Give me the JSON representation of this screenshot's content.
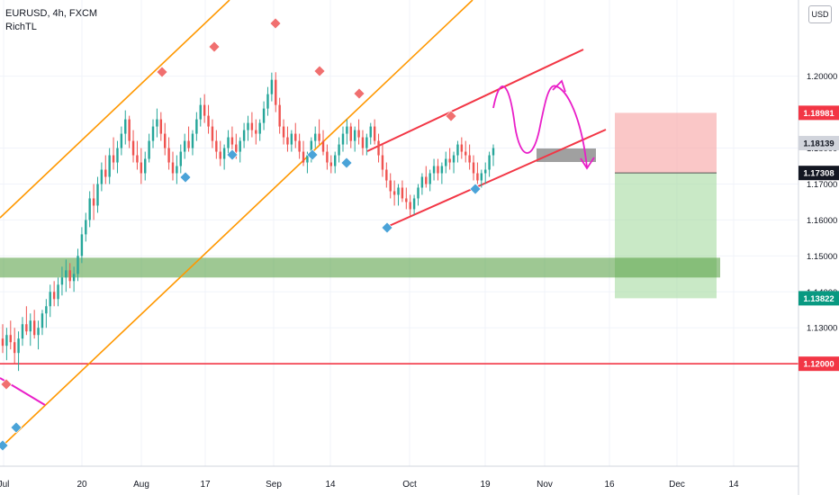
{
  "header": {
    "symbol_line": "EURUSD, 4h, FXCM",
    "indicator": "RichTL"
  },
  "currency_button": "USD",
  "chart_data": {
    "type": "candlestick",
    "symbol": "EURUSD",
    "timeframe": "4h",
    "source": "FXCM",
    "ylim": [
      1.0915,
      1.2212
    ],
    "y_ticks": [
      "1.20000",
      "1.18000",
      "1.17000",
      "1.16000",
      "1.15000",
      "1.14000",
      "1.13000",
      "1.12000"
    ],
    "x_ticks": [
      "Jul",
      "20",
      "Aug",
      "17",
      "Sep",
      "14",
      "Oct",
      "19",
      "Nov",
      "16",
      "Dec",
      "14"
    ],
    "price_labels": [
      {
        "text": "1.18981",
        "value": 1.18981,
        "color": "#f23645"
      },
      {
        "text": "1.18139",
        "value": 1.18139,
        "color": "#d1d4dc"
      },
      {
        "text": "1.17308",
        "value": 1.17308,
        "color": "#131722"
      },
      {
        "text": "1.13822",
        "value": 1.13822,
        "color": "#089981"
      },
      {
        "text": "1.12000",
        "value": 1.12,
        "color": "#f23645"
      }
    ],
    "candles": [
      [
        1.127,
        1.131,
        1.123,
        1.125
      ],
      [
        1.125,
        1.13,
        1.121,
        1.128
      ],
      [
        1.128,
        1.132,
        1.124,
        1.126
      ],
      [
        1.126,
        1.13,
        1.12,
        1.123
      ],
      [
        1.123,
        1.129,
        1.118,
        1.127
      ],
      [
        1.127,
        1.133,
        1.125,
        1.131
      ],
      [
        1.131,
        1.136,
        1.128,
        1.129
      ],
      [
        1.129,
        1.134,
        1.125,
        1.132
      ],
      [
        1.132,
        1.135,
        1.127,
        1.128
      ],
      [
        1.128,
        1.132,
        1.124,
        1.13
      ],
      [
        1.13,
        1.135,
        1.128,
        1.134
      ],
      [
        1.134,
        1.138,
        1.13,
        1.136
      ],
      [
        1.136,
        1.142,
        1.133,
        1.14
      ],
      [
        1.14,
        1.143,
        1.136,
        1.138
      ],
      [
        1.138,
        1.144,
        1.136,
        1.142
      ],
      [
        1.142,
        1.147,
        1.139,
        1.144
      ],
      [
        1.144,
        1.149,
        1.14,
        1.146
      ],
      [
        1.146,
        1.148,
        1.141,
        1.143
      ],
      [
        1.143,
        1.147,
        1.14,
        1.145
      ],
      [
        1.145,
        1.152,
        1.143,
        1.15
      ],
      [
        1.15,
        1.158,
        1.148,
        1.156
      ],
      [
        1.156,
        1.162,
        1.154,
        1.16
      ],
      [
        1.16,
        1.168,
        1.158,
        1.166
      ],
      [
        1.166,
        1.17,
        1.16,
        1.164
      ],
      [
        1.164,
        1.172,
        1.162,
        1.17
      ],
      [
        1.17,
        1.176,
        1.168,
        1.174
      ],
      [
        1.174,
        1.178,
        1.17,
        1.172
      ],
      [
        1.172,
        1.18,
        1.17,
        1.178
      ],
      [
        1.178,
        1.183,
        1.174,
        1.176
      ],
      [
        1.176,
        1.182,
        1.173,
        1.18
      ],
      [
        1.18,
        1.186,
        1.178,
        1.184
      ],
      [
        1.184,
        1.1905,
        1.181,
        1.188
      ],
      [
        1.188,
        1.189,
        1.18,
        1.182
      ],
      [
        1.182,
        1.185,
        1.176,
        1.178
      ],
      [
        1.178,
        1.182,
        1.174,
        1.176
      ],
      [
        1.176,
        1.18,
        1.17,
        1.173
      ],
      [
        1.173,
        1.179,
        1.171,
        1.177
      ],
      [
        1.177,
        1.184,
        1.176,
        1.182
      ],
      [
        1.182,
        1.188,
        1.18,
        1.186
      ],
      [
        1.186,
        1.191,
        1.183,
        1.188
      ],
      [
        1.188,
        1.19,
        1.182,
        1.184
      ],
      [
        1.184,
        1.187,
        1.178,
        1.18
      ],
      [
        1.18,
        1.183,
        1.174,
        1.176
      ],
      [
        1.176,
        1.179,
        1.171,
        1.173
      ],
      [
        1.173,
        1.178,
        1.17,
        1.175
      ],
      [
        1.175,
        1.181,
        1.173,
        1.179
      ],
      [
        1.179,
        1.184,
        1.177,
        1.182
      ],
      [
        1.182,
        1.186,
        1.179,
        1.18
      ],
      [
        1.18,
        1.185,
        1.178,
        1.184
      ],
      [
        1.184,
        1.19,
        1.182,
        1.188
      ],
      [
        1.188,
        1.194,
        1.186,
        1.192
      ],
      [
        1.192,
        1.195,
        1.187,
        1.189
      ],
      [
        1.189,
        1.192,
        1.184,
        1.186
      ],
      [
        1.186,
        1.188,
        1.18,
        1.182
      ],
      [
        1.182,
        1.185,
        1.177,
        1.179
      ],
      [
        1.179,
        1.182,
        1.175,
        1.177
      ],
      [
        1.177,
        1.181,
        1.174,
        1.18
      ],
      [
        1.18,
        1.185,
        1.178,
        1.183
      ],
      [
        1.183,
        1.186,
        1.179,
        1.181
      ],
      [
        1.181,
        1.184,
        1.177,
        1.179
      ],
      [
        1.179,
        1.183,
        1.176,
        1.182
      ],
      [
        1.182,
        1.187,
        1.18,
        1.185
      ],
      [
        1.185,
        1.189,
        1.182,
        1.187
      ],
      [
        1.187,
        1.19,
        1.183,
        1.185
      ],
      [
        1.185,
        1.188,
        1.181,
        1.184
      ],
      [
        1.184,
        1.188,
        1.182,
        1.187
      ],
      [
        1.187,
        1.193,
        1.185,
        1.191
      ],
      [
        1.191,
        1.197,
        1.189,
        1.195
      ],
      [
        1.195,
        1.201,
        1.193,
        1.199
      ],
      [
        1.199,
        1.2011,
        1.19,
        1.192
      ],
      [
        1.192,
        1.194,
        1.184,
        1.186
      ],
      [
        1.186,
        1.188,
        1.181,
        1.183
      ],
      [
        1.183,
        1.186,
        1.179,
        1.181
      ],
      [
        1.181,
        1.185,
        1.179,
        1.184
      ],
      [
        1.184,
        1.187,
        1.18,
        1.182
      ],
      [
        1.182,
        1.184,
        1.177,
        1.179
      ],
      [
        1.179,
        1.182,
        1.175,
        1.176
      ],
      [
        1.176,
        1.179,
        1.173,
        1.178
      ],
      [
        1.178,
        1.183,
        1.176,
        1.182
      ],
      [
        1.182,
        1.186,
        1.18,
        1.184
      ],
      [
        1.184,
        1.188,
        1.181,
        1.182
      ],
      [
        1.182,
        1.185,
        1.178,
        1.179
      ],
      [
        1.179,
        1.181,
        1.174,
        1.176
      ],
      [
        1.176,
        1.178,
        1.173,
        1.175
      ],
      [
        1.175,
        1.179,
        1.173,
        1.178
      ],
      [
        1.178,
        1.183,
        1.176,
        1.181
      ],
      [
        1.181,
        1.186,
        1.179,
        1.184
      ],
      [
        1.184,
        1.188,
        1.181,
        1.186
      ],
      [
        1.186,
        1.187,
        1.18,
        1.182
      ],
      [
        1.182,
        1.186,
        1.179,
        1.185
      ],
      [
        1.185,
        1.188,
        1.181,
        1.183
      ],
      [
        1.183,
        1.185,
        1.178,
        1.18
      ],
      [
        1.18,
        1.184,
        1.178,
        1.183
      ],
      [
        1.183,
        1.187,
        1.181,
        1.186
      ],
      [
        1.186,
        1.188,
        1.181,
        1.182
      ],
      [
        1.182,
        1.184,
        1.176,
        1.178
      ],
      [
        1.178,
        1.181,
        1.172,
        1.174
      ],
      [
        1.174,
        1.176,
        1.169,
        1.171
      ],
      [
        1.171,
        1.173,
        1.166,
        1.168
      ],
      [
        1.168,
        1.171,
        1.164,
        1.167
      ],
      [
        1.167,
        1.17,
        1.164,
        1.169
      ],
      [
        1.169,
        1.171,
        1.165,
        1.166
      ],
      [
        1.166,
        1.169,
        1.163,
        1.165
      ],
      [
        1.165,
        1.167,
        1.1612,
        1.163
      ],
      [
        1.163,
        1.167,
        1.1615,
        1.166
      ],
      [
        1.166,
        1.17,
        1.164,
        1.169
      ],
      [
        1.169,
        1.173,
        1.167,
        1.172
      ],
      [
        1.172,
        1.175,
        1.169,
        1.17
      ],
      [
        1.17,
        1.174,
        1.168,
        1.173
      ],
      [
        1.173,
        1.177,
        1.171,
        1.175
      ],
      [
        1.175,
        1.177,
        1.171,
        1.173
      ],
      [
        1.173,
        1.176,
        1.17,
        1.175
      ],
      [
        1.175,
        1.179,
        1.173,
        1.177
      ],
      [
        1.177,
        1.18,
        1.174,
        1.176
      ],
      [
        1.176,
        1.179,
        1.173,
        1.178
      ],
      [
        1.178,
        1.182,
        1.176,
        1.181
      ],
      [
        1.181,
        1.183,
        1.177,
        1.179
      ],
      [
        1.179,
        1.182,
        1.176,
        1.178
      ],
      [
        1.178,
        1.181,
        1.174,
        1.176
      ],
      [
        1.176,
        1.178,
        1.171,
        1.173
      ],
      [
        1.173,
        1.176,
        1.17,
        1.171
      ],
      [
        1.171,
        1.174,
        1.169,
        1.173
      ],
      [
        1.173,
        1.176,
        1.17,
        1.174
      ],
      [
        1.174,
        1.179,
        1.172,
        1.178
      ],
      [
        1.178,
        1.181,
        1.175,
        1.18
      ]
    ],
    "support_zone": {
      "low": 1.144,
      "high": 1.1495,
      "color": "#4f9a3a"
    },
    "horizontal_level": {
      "value": 1.12,
      "color": "#f23645"
    },
    "short_position": {
      "entry": 1.17308,
      "stop": 1.18981,
      "target": 1.13822
    }
  }
}
